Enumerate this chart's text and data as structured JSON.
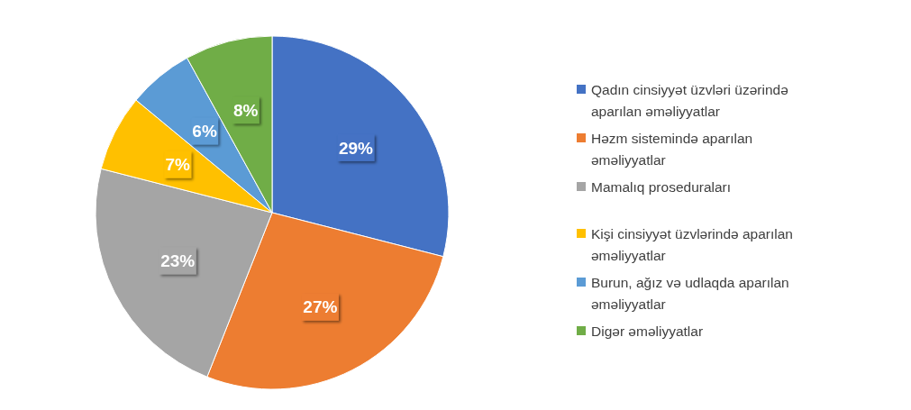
{
  "chart_data": {
    "type": "pie",
    "categories": [
      "Qadın cinsiyyət üzvləri üzərində aparılan əməliyyatlar",
      "Həzm sistemində aparılan əməliyyatlar",
      "Mamalıq proseduraları",
      "Kişi cinsiyyət üzvlərində aparılan əməliyyatlar",
      "Burun, ağız və udlaqda aparılan əməliyyatlar",
      "Digər əməliyyatlar"
    ],
    "values": [
      29,
      27,
      23,
      7,
      6,
      8
    ],
    "value_labels": [
      "29%",
      "27%",
      "23%",
      "7%",
      "6%",
      "8%"
    ],
    "colors": [
      "#4472c4",
      "#ed7d31",
      "#a5a5a5",
      "#ffc000",
      "#5b9bd5",
      "#70ad47"
    ],
    "legend": "right"
  }
}
